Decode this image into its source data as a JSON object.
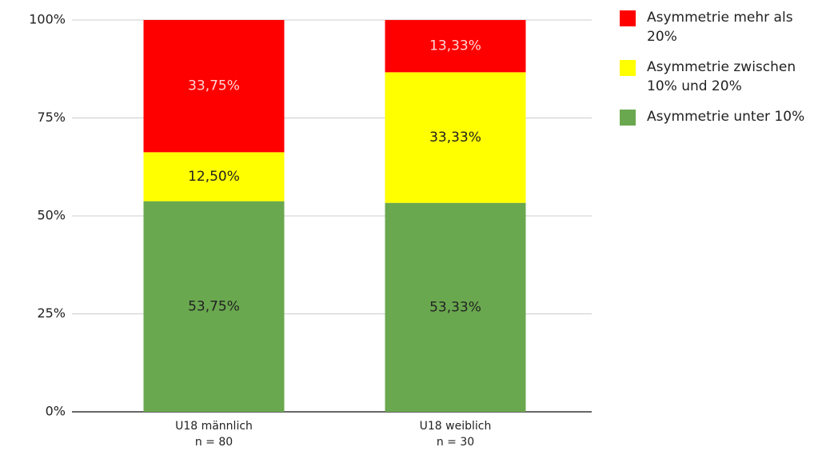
{
  "chart_data": {
    "type": "stacked_bar",
    "categories": [
      "U18 männlich",
      "U18 weiblich"
    ],
    "category_notes": [
      "n = 80",
      "n = 30"
    ],
    "series": [
      {
        "name": "Asymmetrie mehr als 20%",
        "color": "#ff0000",
        "values": [
          33.75,
          13.33
        ],
        "value_labels": [
          "33,75%",
          "13,33%"
        ]
      },
      {
        "name": "Asymmetrie zwischen 10% und 20%",
        "color": "#ffff00",
        "values": [
          12.5,
          33.33
        ],
        "value_labels": [
          "12,50%",
          "33,33%"
        ]
      },
      {
        "name": "Asymmetrie unter 10%",
        "color": "#6aa84f",
        "values": [
          53.75,
          53.33
        ],
        "value_labels": [
          "53,75%",
          "53,33%"
        ]
      }
    ],
    "ylim": [
      0,
      100
    ],
    "yticks": [
      {
        "value": 0,
        "label": "0%"
      },
      {
        "value": 25,
        "label": "25%"
      },
      {
        "value": 50,
        "label": "50%"
      },
      {
        "value": 75,
        "label": "75%"
      },
      {
        "value": 100,
        "label": "100%"
      }
    ],
    "grid": true,
    "legend": "right"
  }
}
